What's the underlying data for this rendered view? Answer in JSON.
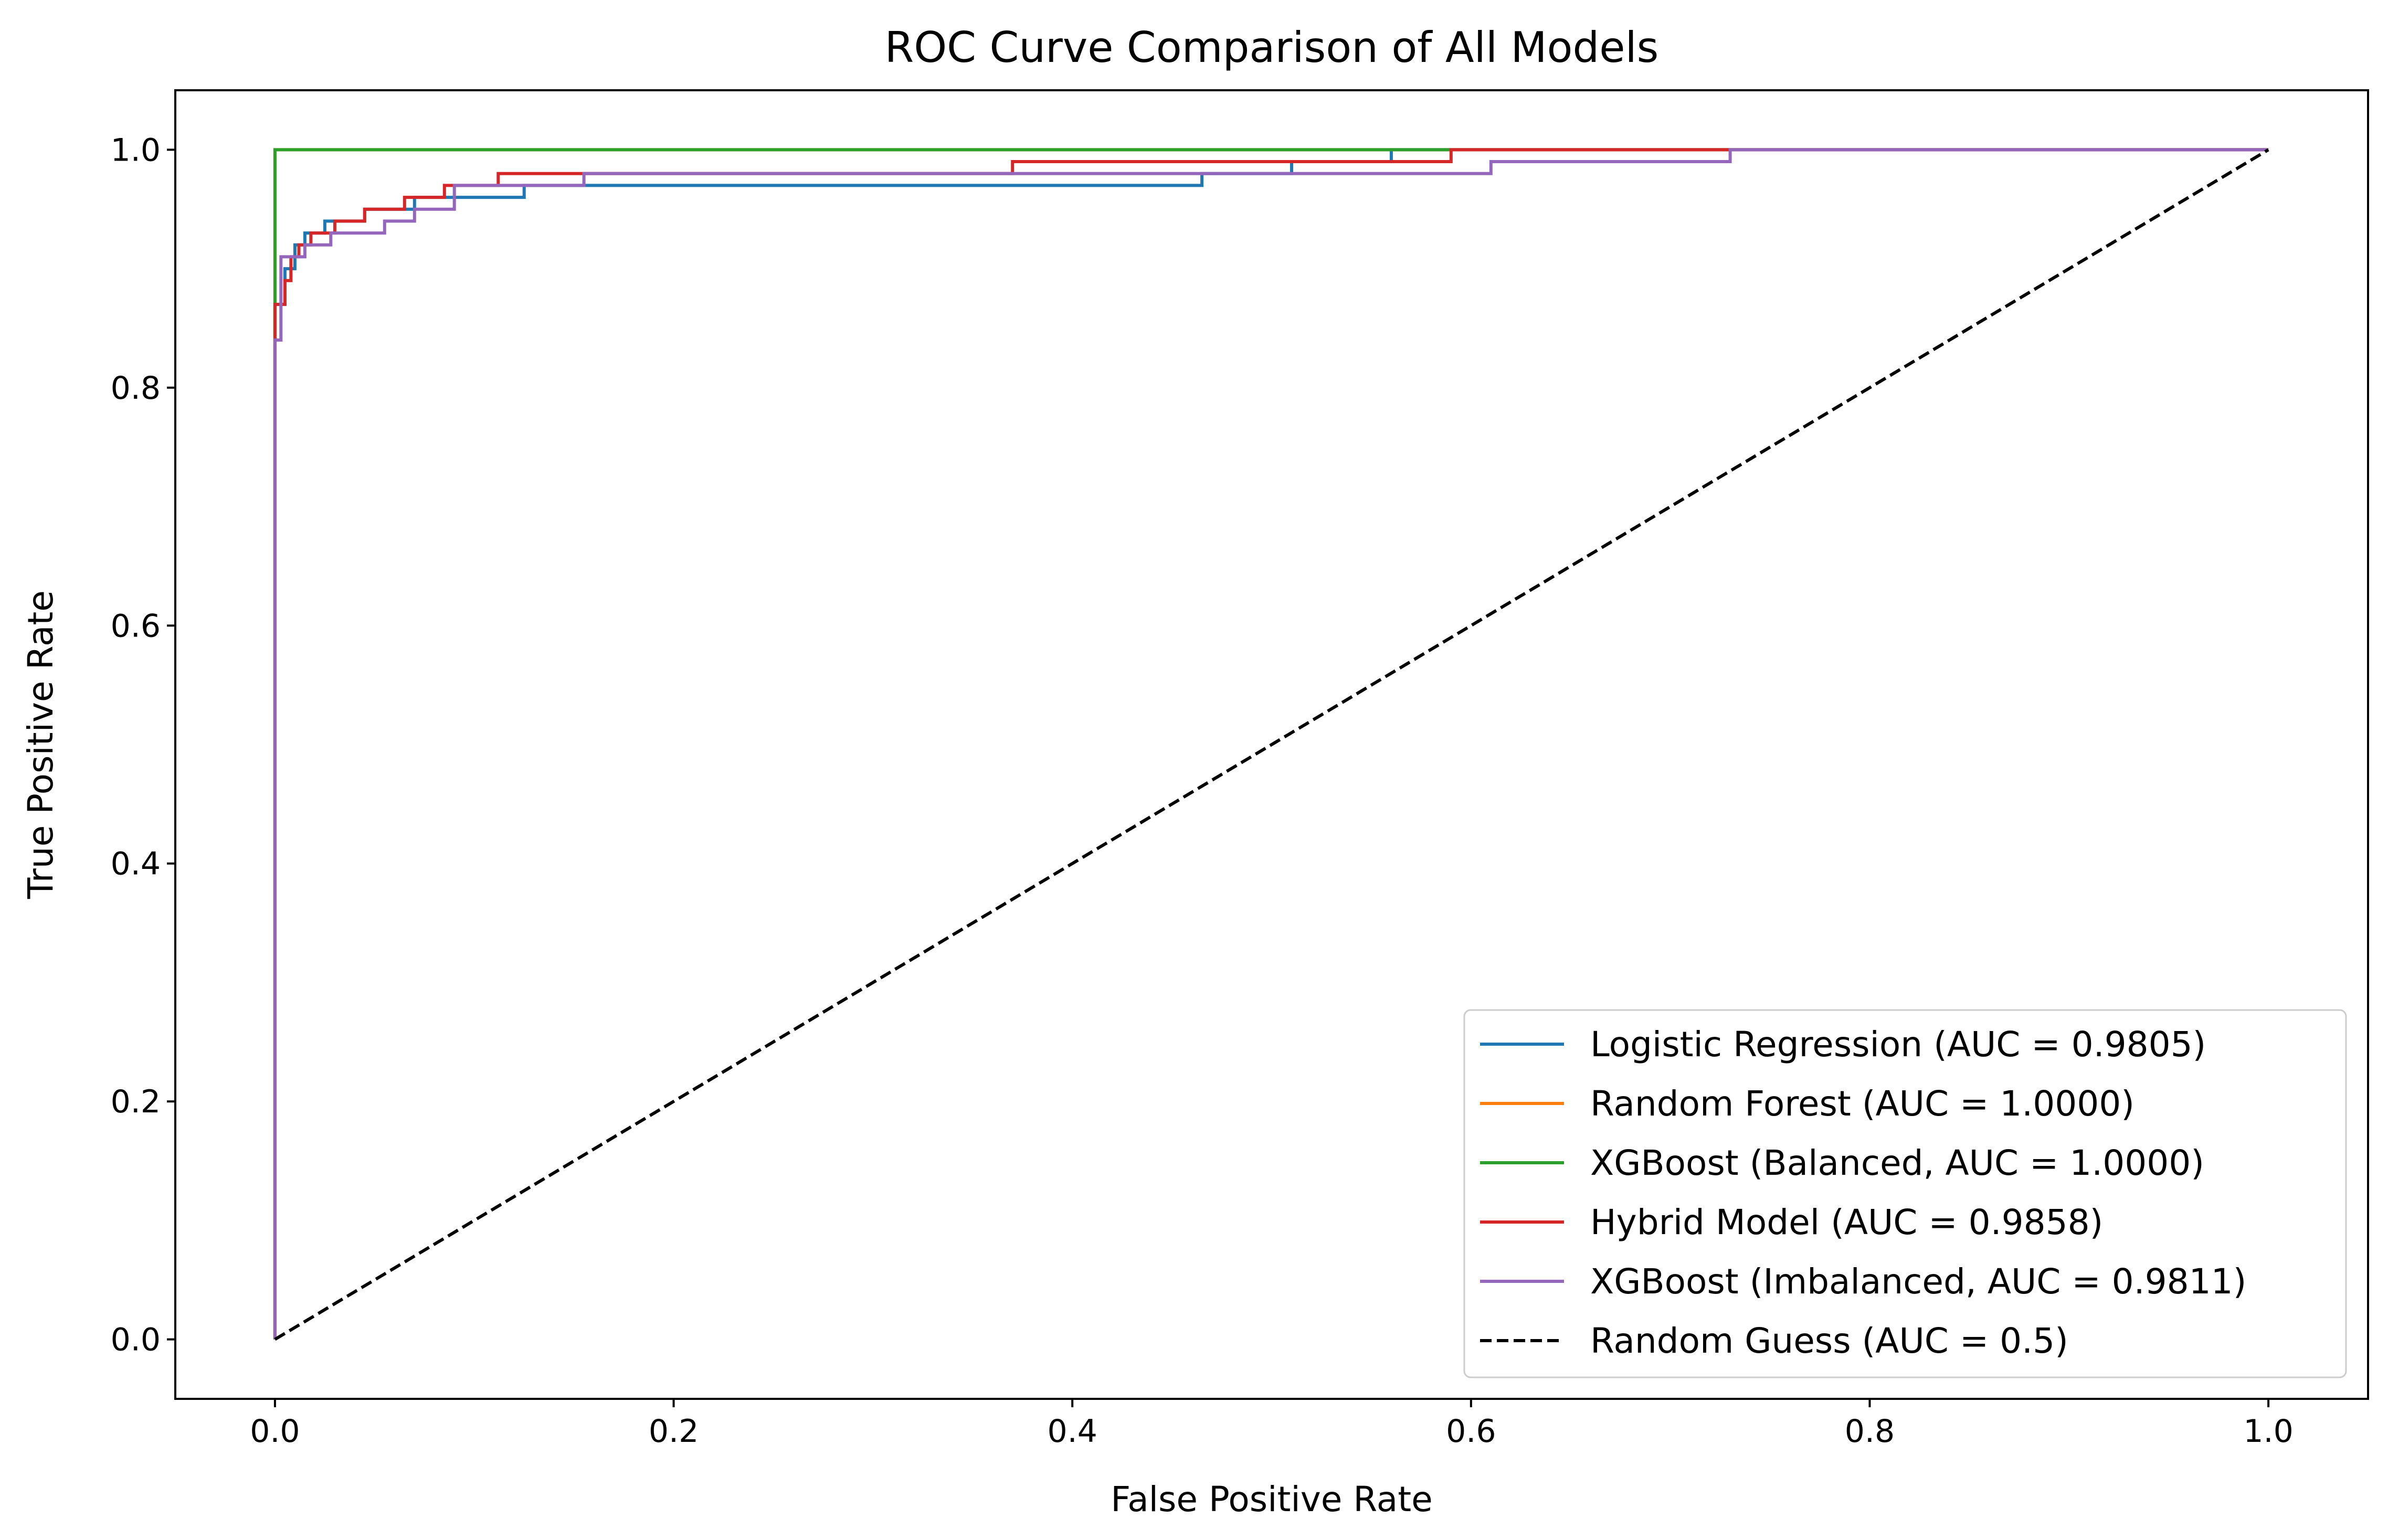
{
  "chart_data": {
    "type": "line",
    "title": "ROC Curve Comparison of All Models",
    "xlabel": "False Positive Rate",
    "ylabel": "True Positive Rate",
    "xlim": [
      -0.05,
      1.05
    ],
    "ylim": [
      -0.05,
      1.05
    ],
    "xticks": [
      0.0,
      0.2,
      0.4,
      0.6,
      0.8,
      1.0
    ],
    "xtick_labels": [
      "0.0",
      "0.2",
      "0.4",
      "0.6",
      "0.8",
      "1.0"
    ],
    "yticks": [
      0.0,
      0.2,
      0.4,
      0.6,
      0.8,
      1.0
    ],
    "ytick_labels": [
      "0.0",
      "0.2",
      "0.4",
      "0.6",
      "0.8",
      "1.0"
    ],
    "grid": false,
    "legend_position": "lower-right",
    "series": [
      {
        "name": "Logistic Regression (AUC = 0.9805)",
        "color": "#1f77b4",
        "dash": "solid",
        "x": [
          0,
          0,
          0.005,
          0.005,
          0.01,
          0.01,
          0.015,
          0.015,
          0.025,
          0.025,
          0.035,
          0.035,
          0.045,
          0.045,
          0.06,
          0.06,
          0.07,
          0.07,
          0.09,
          0.09,
          0.125,
          0.125,
          0.155,
          0.155,
          0.465,
          0.465,
          0.51,
          0.51,
          0.56,
          0.56,
          1.0
        ],
        "y": [
          0,
          0.87,
          0.87,
          0.9,
          0.9,
          0.92,
          0.92,
          0.93,
          0.93,
          0.94,
          0.94,
          0.94,
          0.94,
          0.95,
          0.95,
          0.95,
          0.95,
          0.96,
          0.96,
          0.96,
          0.96,
          0.97,
          0.97,
          0.97,
          0.97,
          0.98,
          0.98,
          0.99,
          0.99,
          1.0,
          1.0
        ]
      },
      {
        "name": "Random Forest (AUC = 1.0000)",
        "color": "#ff7f0e",
        "dash": "solid",
        "x": [
          0,
          0,
          1.0
        ],
        "y": [
          0,
          1.0,
          1.0
        ]
      },
      {
        "name": "XGBoost (Balanced, AUC = 1.0000)",
        "color": "#2ca02c",
        "dash": "solid",
        "x": [
          0,
          0,
          1.0
        ],
        "y": [
          0,
          1.0,
          1.0
        ]
      },
      {
        "name": "Hybrid Model (AUC = 0.9858)",
        "color": "#d62728",
        "dash": "solid",
        "x": [
          0,
          0,
          0.005,
          0.005,
          0.008,
          0.008,
          0.012,
          0.012,
          0.018,
          0.018,
          0.03,
          0.03,
          0.045,
          0.045,
          0.065,
          0.065,
          0.085,
          0.085,
          0.112,
          0.112,
          0.37,
          0.37,
          0.59,
          0.59,
          1.0
        ],
        "y": [
          0,
          0.87,
          0.87,
          0.89,
          0.89,
          0.91,
          0.91,
          0.92,
          0.92,
          0.93,
          0.93,
          0.94,
          0.94,
          0.95,
          0.95,
          0.96,
          0.96,
          0.97,
          0.97,
          0.98,
          0.98,
          0.99,
          0.99,
          1.0,
          1.0
        ]
      },
      {
        "name": "XGBoost (Imbalanced, AUC = 0.9811)",
        "color": "#9467bd",
        "dash": "solid",
        "x": [
          0,
          0,
          0.003,
          0.003,
          0.015,
          0.015,
          0.028,
          0.028,
          0.055,
          0.055,
          0.07,
          0.07,
          0.09,
          0.09,
          0.155,
          0.155,
          0.61,
          0.61,
          0.73,
          0.73,
          1.0
        ],
        "y": [
          0,
          0.84,
          0.84,
          0.91,
          0.91,
          0.92,
          0.92,
          0.93,
          0.93,
          0.94,
          0.94,
          0.95,
          0.95,
          0.97,
          0.97,
          0.98,
          0.98,
          0.99,
          0.99,
          1.0,
          1.0
        ]
      },
      {
        "name": "Random Guess (AUC = 0.5)",
        "color": "#000000",
        "dash": "dashed",
        "x": [
          0,
          1.0
        ],
        "y": [
          0,
          1.0
        ]
      }
    ]
  }
}
